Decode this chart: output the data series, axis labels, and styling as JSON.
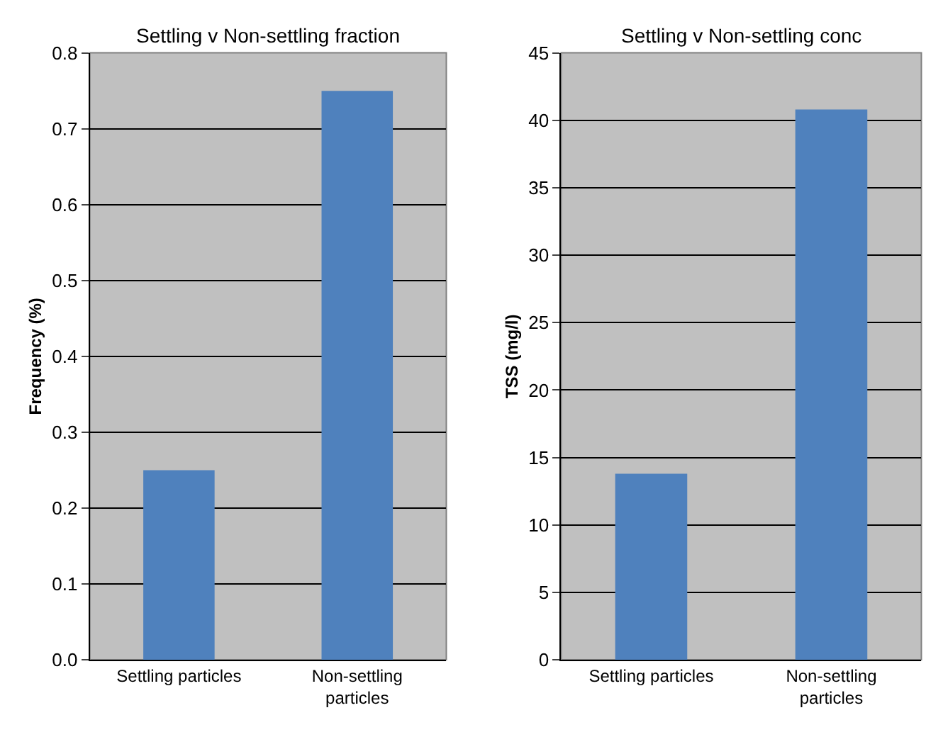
{
  "chart_data": [
    {
      "type": "bar",
      "title": "Settling v Non-settling fraction",
      "ylabel": "Frequency (%)",
      "categories": [
        "Settling particles",
        "Non-settling particles"
      ],
      "values": [
        0.25,
        0.75
      ],
      "color": "#4f81bd",
      "ylim": [
        0,
        0.8
      ],
      "yticks": [
        {
          "value": 0,
          "label": "0.0"
        },
        0.1,
        0.2,
        0.3,
        0.4,
        0.5,
        0.6,
        0.7,
        0.8
      ],
      "grid": "y"
    },
    {
      "type": "bar",
      "title": "Settling v Non-settling conc",
      "ylabel": "TSS (mg/l)",
      "categories": [
        "Settling particles",
        "Non-settling particles"
      ],
      "values": [
        13.8,
        40.8
      ],
      "color": "#4f81bd",
      "ylim": [
        0,
        45
      ],
      "yticks": [
        0,
        5,
        10,
        15,
        20,
        25,
        30,
        35,
        40,
        45
      ],
      "grid": "y"
    }
  ]
}
